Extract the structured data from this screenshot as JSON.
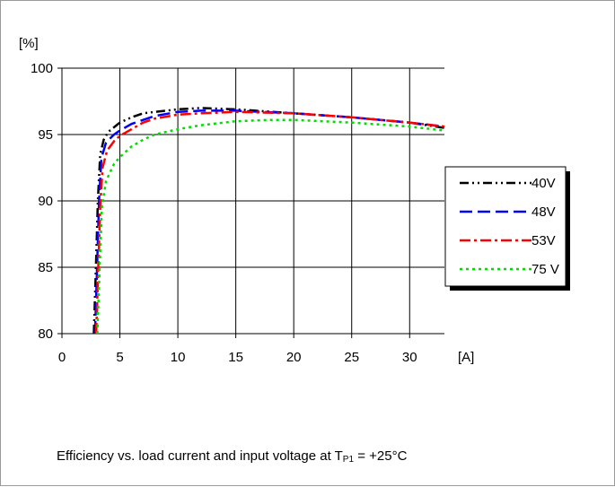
{
  "chart_data": {
    "type": "line",
    "ylabel": "[%]",
    "xlabel": "[A]",
    "xlim": [
      0,
      33
    ],
    "ylim": [
      80,
      100
    ],
    "x_ticks": [
      "0",
      "5",
      "10",
      "15",
      "20",
      "25",
      "30"
    ],
    "y_ticks": [
      "80",
      "85",
      "90",
      "95",
      "100"
    ],
    "grid": true,
    "legend_position": "right",
    "series": [
      {
        "name": "40V",
        "color": "#000000",
        "dash": "dash-dot-dot",
        "points": [
          [
            2.75,
            80
          ],
          [
            2.9,
            84
          ],
          [
            3.1,
            90
          ],
          [
            3.3,
            93.5
          ],
          [
            3.6,
            94.6
          ],
          [
            4,
            95.2
          ],
          [
            5,
            95.9
          ],
          [
            6,
            96.3
          ],
          [
            7,
            96.6
          ],
          [
            8,
            96.7
          ],
          [
            10,
            96.9
          ],
          [
            12,
            97.0
          ],
          [
            15,
            96.9
          ],
          [
            20,
            96.6
          ],
          [
            25,
            96.3
          ],
          [
            30,
            95.9
          ],
          [
            33,
            95.5
          ]
        ]
      },
      {
        "name": "48V",
        "color": "#0000ff",
        "dash": "dash",
        "points": [
          [
            2.85,
            80
          ],
          [
            3.0,
            84
          ],
          [
            3.2,
            90
          ],
          [
            3.4,
            93.2
          ],
          [
            3.8,
            94.4
          ],
          [
            4.5,
            95.0
          ],
          [
            5,
            95.3
          ],
          [
            6,
            95.8
          ],
          [
            7,
            96.1
          ],
          [
            8,
            96.4
          ],
          [
            10,
            96.7
          ],
          [
            12,
            96.8
          ],
          [
            15,
            96.8
          ],
          [
            20,
            96.6
          ],
          [
            25,
            96.3
          ],
          [
            30,
            95.9
          ],
          [
            33,
            95.6
          ]
        ]
      },
      {
        "name": "53V",
        "color": "#ff0000",
        "dash": "dash-dot",
        "points": [
          [
            2.95,
            80
          ],
          [
            3.1,
            84
          ],
          [
            3.3,
            89.5
          ],
          [
            3.5,
            92.5
          ],
          [
            3.9,
            93.8
          ],
          [
            4.5,
            94.5
          ],
          [
            5,
            94.9
          ],
          [
            6,
            95.4
          ],
          [
            7,
            95.9
          ],
          [
            8,
            96.2
          ],
          [
            10,
            96.5
          ],
          [
            12,
            96.6
          ],
          [
            15,
            96.7
          ],
          [
            20,
            96.6
          ],
          [
            25,
            96.3
          ],
          [
            30,
            95.9
          ],
          [
            33,
            95.6
          ]
        ]
      },
      {
        "name": "75 V",
        "color": "#00dd00",
        "dash": "dot",
        "points": [
          [
            3.05,
            80
          ],
          [
            3.25,
            85
          ],
          [
            3.45,
            89.5
          ],
          [
            3.8,
            91.5
          ],
          [
            4.5,
            92.8
          ],
          [
            5,
            93.3
          ],
          [
            6,
            94.1
          ],
          [
            7,
            94.6
          ],
          [
            8,
            95.0
          ],
          [
            10,
            95.4
          ],
          [
            12,
            95.7
          ],
          [
            15,
            96.0
          ],
          [
            18,
            96.1
          ],
          [
            20,
            96.1
          ],
          [
            25,
            95.9
          ],
          [
            30,
            95.6
          ],
          [
            33,
            95.3
          ]
        ]
      }
    ]
  },
  "caption": {
    "prefix": "Efficiency vs. load current and input voltage at T",
    "subscript": "P1",
    "suffix": " = +25°C"
  }
}
